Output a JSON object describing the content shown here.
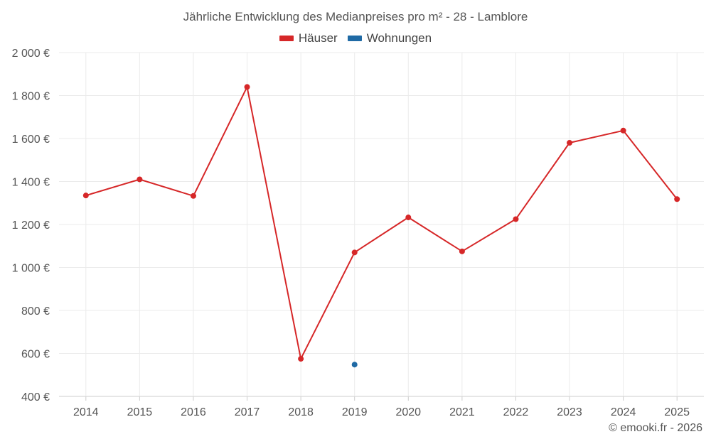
{
  "chart_data": {
    "type": "line",
    "title": "Jährliche Entwicklung des Medianpreises pro m² - 28 - Lamblore",
    "xlabel": "",
    "ylabel": "",
    "categories": [
      "2014",
      "2015",
      "2016",
      "2017",
      "2018",
      "2019",
      "2020",
      "2021",
      "2022",
      "2023",
      "2024",
      "2025"
    ],
    "ylim": [
      400,
      2000
    ],
    "yticks": [
      400,
      600,
      800,
      1000,
      1200,
      1400,
      1600,
      1800,
      2000
    ],
    "ytick_labels": [
      "400 €",
      "600 €",
      "800 €",
      "1 000 €",
      "1 200 €",
      "1 400 €",
      "1 600 €",
      "1 800 €",
      "2 000 €"
    ],
    "grid": true,
    "legend_position": "top-center",
    "series": [
      {
        "name": "Häuser",
        "color": "#d62728",
        "values": [
          1335,
          1410,
          1333,
          1840,
          575,
          1070,
          1233,
          1075,
          1225,
          1580,
          1637,
          1318
        ]
      },
      {
        "name": "Wohnungen",
        "color": "#1f6aa5",
        "values": [
          null,
          null,
          null,
          null,
          null,
          548,
          null,
          null,
          null,
          null,
          null,
          null
        ]
      }
    ]
  },
  "credit": "© emooki.fr - 2026"
}
